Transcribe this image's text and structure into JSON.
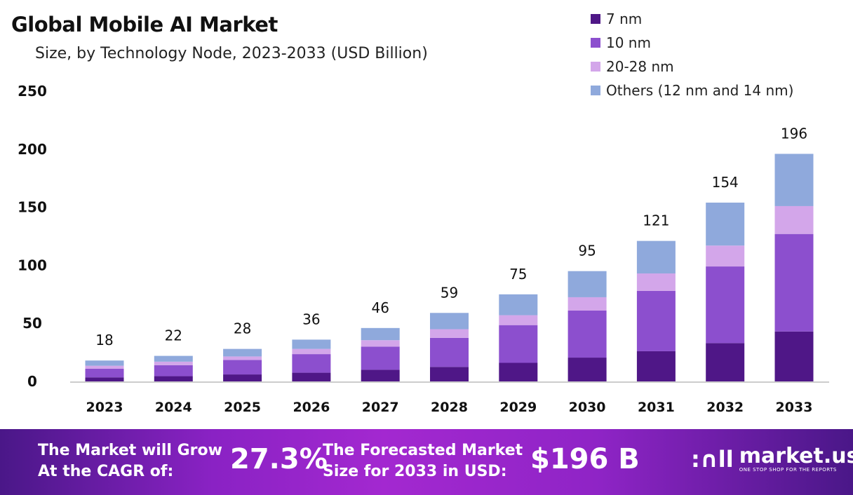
{
  "title": "Global Mobile AI Market",
  "subtitle": "Size, by Technology Node, 2023-2033 (USD Billion)",
  "chart_data": {
    "type": "bar",
    "stacked": true,
    "categories": [
      "2023",
      "2024",
      "2025",
      "2026",
      "2027",
      "2028",
      "2029",
      "2030",
      "2031",
      "2032",
      "2033"
    ],
    "series": [
      {
        "name": "7 nm",
        "color": "#4f1787",
        "values": [
          3.5,
          4.5,
          6,
          7.5,
          10,
          12.5,
          16,
          20.5,
          26,
          33,
          43
        ]
      },
      {
        "name": "10 nm",
        "color": "#8c4fce",
        "values": [
          7.5,
          9.5,
          12.5,
          16,
          20,
          25,
          32.5,
          40.5,
          52,
          66,
          84
        ]
      },
      {
        "name": "20-28 nm",
        "color": "#d3a6ea",
        "values": [
          2.5,
          3,
          3,
          4.5,
          5.5,
          7.5,
          8.5,
          11.5,
          15,
          18,
          24
        ]
      },
      {
        "name": "Others (12 nm and 14 nm)",
        "color": "#8fa9dc",
        "values": [
          4.5,
          5,
          6.5,
          8,
          10.5,
          14,
          18,
          22.5,
          28,
          37,
          45
        ]
      }
    ],
    "totals": [
      "18",
      "22",
      "28",
      "36",
      "46",
      "59",
      "75",
      "95",
      "121",
      "154",
      "196"
    ],
    "y_ticks": [
      "0",
      "50",
      "100",
      "150",
      "200",
      "250"
    ],
    "ylim": [
      0,
      250
    ],
    "grid": false,
    "legend_position": "top-right"
  },
  "footer": {
    "cagr_label_line1": "The Market will Grow",
    "cagr_label_line2": "At the CAGR of:",
    "cagr_value": "27.3%",
    "forecast_label_line1": "The Forecasted Market",
    "forecast_label_line2": "Size for 2033 in USD:",
    "forecast_value": "$196 B",
    "brand_name": "market.us",
    "brand_tagline": "ONE STOP SHOP FOR THE REPORTS"
  }
}
